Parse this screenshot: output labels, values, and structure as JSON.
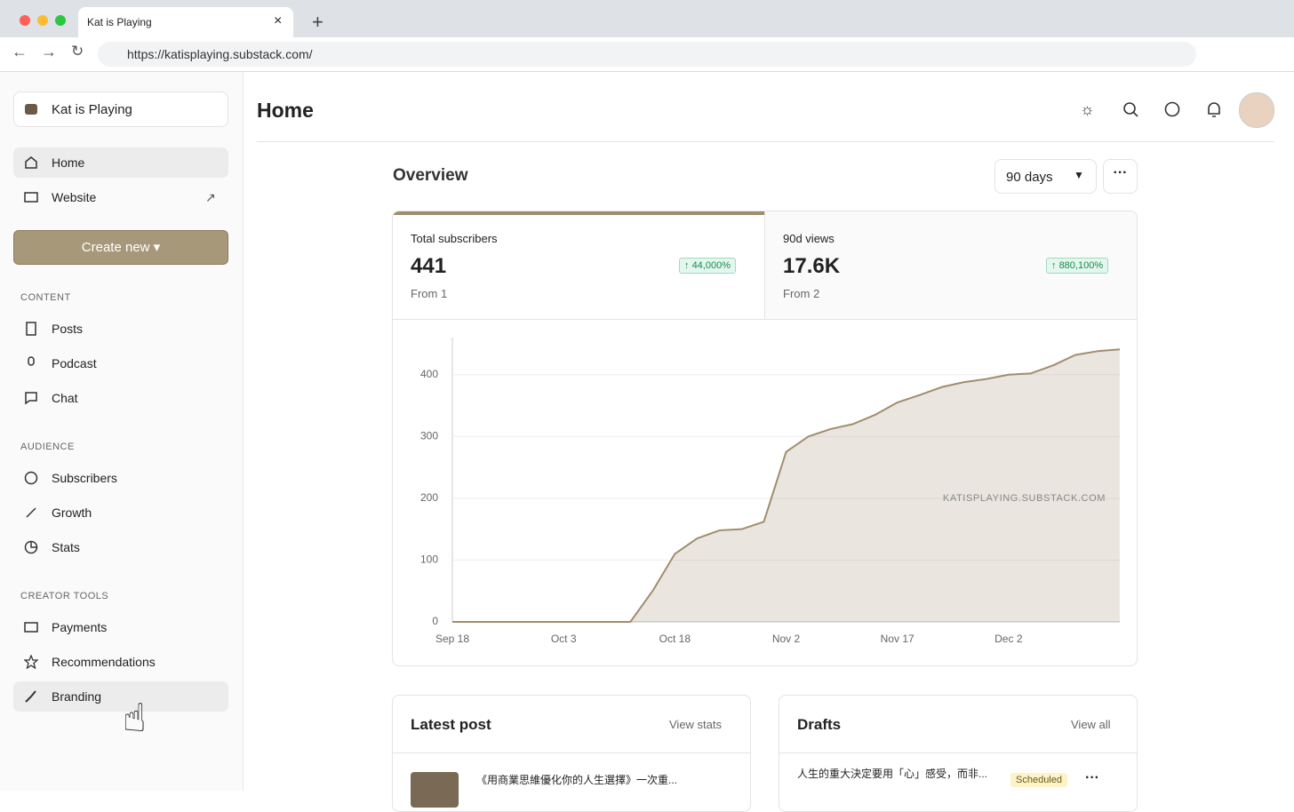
{
  "browser": {
    "tab_title": "Kat is Playing",
    "url": "https://katisplaying.substack.com/"
  },
  "sidebar": {
    "publication": "Kat is Playing",
    "home": "Home",
    "website": "Website",
    "create_button": "Create new",
    "content_heading": "CONTENT",
    "content_items": [
      "Posts",
      "Podcast",
      "Chat"
    ],
    "audience_heading": "AUDIENCE",
    "audience_items": [
      "Subscribers",
      "Growth",
      "Stats"
    ],
    "tools_heading": "CREATOR TOOLS",
    "tools_items": [
      "Payments",
      "Recommendations",
      "Branding"
    ]
  },
  "main": {
    "title": "Home",
    "overview": "Overview",
    "range": "90 days",
    "stats": [
      {
        "label": "Total subscribers",
        "value": "441",
        "change": "44,000%",
        "from": "From 1"
      },
      {
        "label": "90d views",
        "value": "17.6K",
        "change": "880,100%",
        "from": "From 2"
      }
    ]
  },
  "chart_data": {
    "type": "area",
    "watermark": "KATISPLAYING.SUBSTACK.COM",
    "x": [
      "Sep 18",
      null,
      null,
      null,
      null,
      "Oct 3",
      null,
      null,
      null,
      null,
      "Oct 18",
      null,
      null,
      null,
      null,
      "Nov 2",
      null,
      null,
      null,
      null,
      "Nov 17",
      null,
      null,
      null,
      null,
      "Dec 2",
      null,
      null,
      null,
      null,
      null
    ],
    "series": [
      {
        "name": "Total subscribers",
        "color": "#a08d6e",
        "values": [
          0,
          0,
          0,
          0,
          0,
          0,
          0,
          0,
          0,
          50,
          110,
          135,
          148,
          150,
          162,
          275,
          300,
          312,
          320,
          335,
          355,
          367,
          380,
          388,
          393,
          400,
          402,
          415,
          432,
          438,
          441
        ]
      }
    ],
    "ylim": [
      0,
      460
    ],
    "yticks": [
      0,
      100,
      200,
      300,
      400
    ],
    "grid": true
  },
  "latest_post": {
    "heading": "Latest post",
    "action": "View stats",
    "post_title": "《用商業思維優化你的人生選擇》一次重..."
  },
  "drafts": {
    "heading": "Drafts",
    "action": "View all",
    "draft_title": "人生的重大決定要用「心」感受，而非...",
    "status": "Scheduled"
  }
}
